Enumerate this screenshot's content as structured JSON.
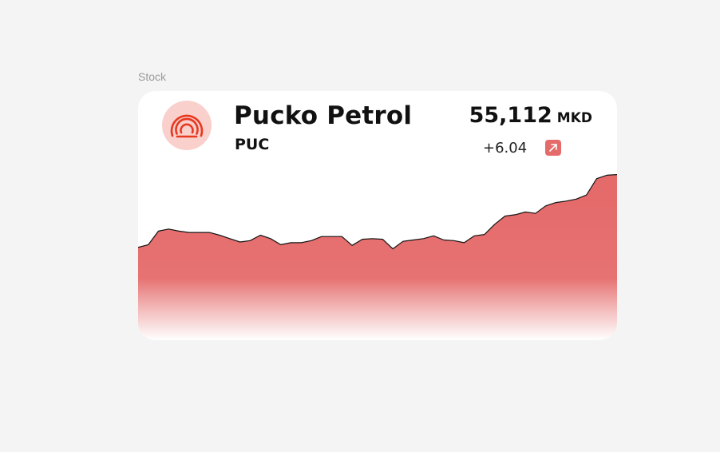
{
  "section": {
    "label": "Stock"
  },
  "stock": {
    "name": "Pucko Petrol",
    "ticker": "PUC",
    "price": "55,112",
    "currency": "MKD",
    "change": "+6.04",
    "trend_icon": "arrow-up-right-icon",
    "logo_icon": "concentric-arcs-logo-icon",
    "accent_color": "#e56b6b",
    "logo_bg_color": "#f9d0cb",
    "logo_fg_color": "#e8391f"
  },
  "chart_data": {
    "type": "area",
    "title": "",
    "xlabel": "",
    "ylabel": "",
    "grid": false,
    "values": [
      67,
      71,
      91,
      94,
      91,
      89,
      89,
      89,
      85,
      80,
      75,
      77,
      85,
      80,
      71,
      74,
      74,
      77,
      83,
      83,
      83,
      70,
      79,
      80,
      79,
      65,
      76,
      78,
      80,
      84,
      78,
      77,
      74,
      84,
      86,
      101,
      113,
      115,
      119,
      117,
      128,
      133,
      135,
      138,
      144,
      168,
      173,
      174
    ],
    "ylim": [
      0,
      200
    ]
  }
}
